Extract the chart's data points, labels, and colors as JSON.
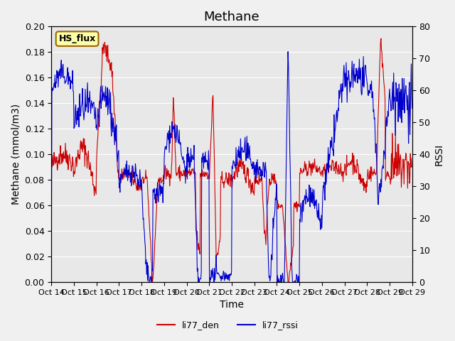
{
  "title": "Methane",
  "ylabel_left": "Methane (mmol/m3)",
  "ylabel_right": "RSSI",
  "xlabel": "Time",
  "ylim_left": [
    0.0,
    0.2
  ],
  "ylim_right": [
    0,
    80
  ],
  "yticks_left": [
    0.0,
    0.02,
    0.04,
    0.06,
    0.08,
    0.1,
    0.12,
    0.14,
    0.16,
    0.18,
    0.2
  ],
  "yticks_right": [
    0,
    10,
    20,
    30,
    40,
    50,
    60,
    70,
    80
  ],
  "xtick_labels": [
    "Oct 14",
    "Oct 15",
    "Oct 16",
    "Oct 17",
    "Oct 18",
    "Oct 19",
    "Oct 20",
    "Oct 21",
    "Oct 22",
    "Oct 23",
    "Oct 24",
    "Oct 25",
    "Oct 26",
    "Oct 27",
    "Oct 28",
    "Oct 29"
  ],
  "legend_labels": [
    "li77_den",
    "li77_rssi"
  ],
  "legend_colors": [
    "#cc0000",
    "#0000cc"
  ],
  "line_color_red": "#cc0000",
  "line_color_blue": "#0000cc",
  "bg_color": "#e8e8e8",
  "box_label": "HS_flux",
  "box_facecolor": "#ffffaa",
  "box_edgecolor": "#996600",
  "title_fontsize": 13,
  "axis_label_fontsize": 10,
  "tick_fontsize": 9
}
